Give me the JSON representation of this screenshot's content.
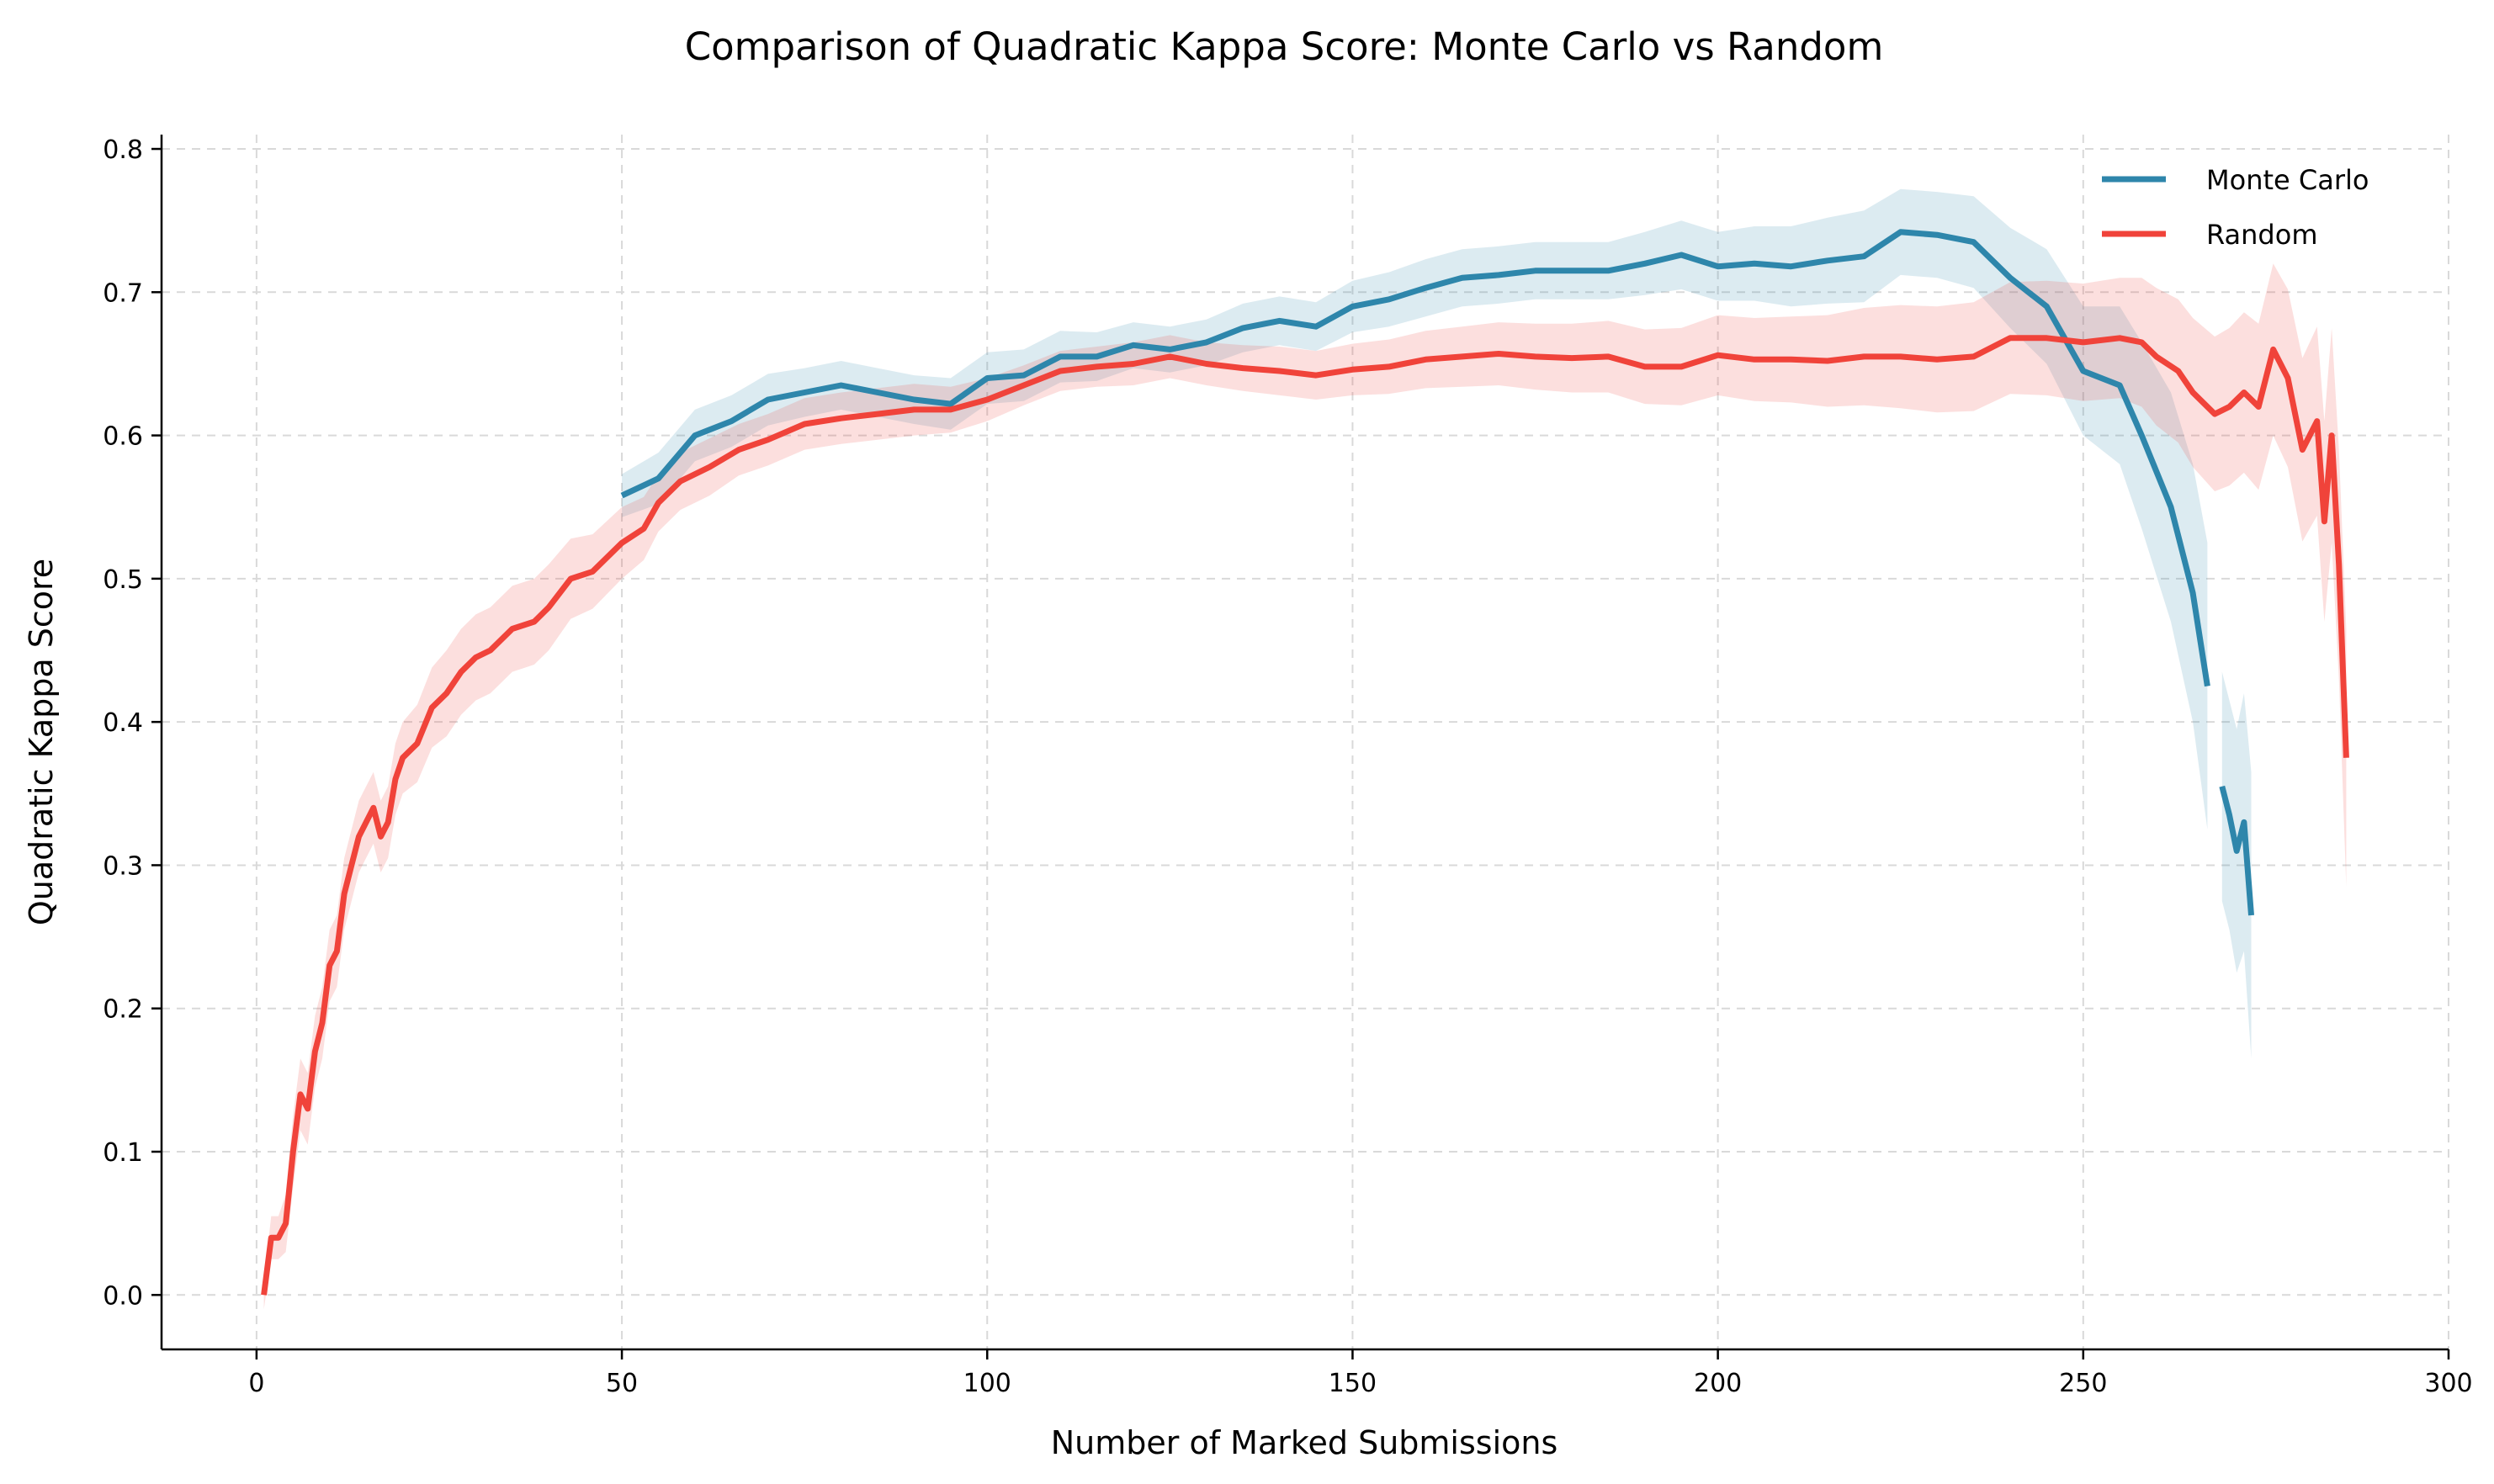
{
  "chart_data": {
    "type": "line",
    "title": "Comparison of Quadratic Kappa Score: Monte Carlo vs Random",
    "xlabel": "Number of Marked Submissions",
    "ylabel": "Quadratic Kappa Score",
    "xlim": [
      -13,
      300
    ],
    "ylim": [
      -0.038,
      0.81
    ],
    "xticks": [
      0,
      50,
      100,
      150,
      200,
      250,
      300
    ],
    "yticks": [
      0.0,
      0.1,
      0.2,
      0.3,
      0.4,
      0.5,
      0.6,
      0.7,
      0.8
    ],
    "xtick_labels": [
      "0",
      "50",
      "100",
      "150",
      "200",
      "250",
      "300"
    ],
    "ytick_labels": [
      "0.0",
      "0.1",
      "0.2",
      "0.3",
      "0.4",
      "0.5",
      "0.6",
      "0.7",
      "0.8"
    ],
    "grid": true,
    "legend": "top-right",
    "series": [
      {
        "name": "Monte Carlo",
        "color": "#2e86ab",
        "band_color": "#2e86ab",
        "segments": [
          {
            "x": [
              50,
              55,
              60,
              65,
              70,
              75,
              80,
              85,
              90,
              95,
              100,
              105,
              110,
              115,
              120,
              125,
              130,
              135,
              140,
              145,
              150,
              155,
              160,
              165,
              170,
              175,
              180,
              185,
              190,
              195,
              200,
              205,
              210,
              215,
              220,
              225,
              230,
              235,
              240,
              245,
              250,
              255,
              258,
              262,
              265,
              267
            ],
            "y": [
              0.558,
              0.57,
              0.6,
              0.61,
              0.625,
              0.63,
              0.635,
              0.63,
              0.625,
              0.622,
              0.64,
              0.642,
              0.655,
              0.655,
              0.663,
              0.66,
              0.665,
              0.675,
              0.68,
              0.676,
              0.69,
              0.695,
              0.703,
              0.71,
              0.712,
              0.715,
              0.715,
              0.715,
              0.72,
              0.726,
              0.718,
              0.72,
              0.718,
              0.722,
              0.725,
              0.742,
              0.74,
              0.735,
              0.71,
              0.69,
              0.645,
              0.635,
              0.6,
              0.55,
              0.49,
              0.425
            ],
            "band": [
              0.015,
              0.018,
              0.018,
              0.018,
              0.018,
              0.017,
              0.017,
              0.017,
              0.017,
              0.018,
              0.018,
              0.018,
              0.018,
              0.017,
              0.016,
              0.016,
              0.016,
              0.017,
              0.017,
              0.017,
              0.018,
              0.019,
              0.02,
              0.02,
              0.02,
              0.02,
              0.02,
              0.02,
              0.022,
              0.024,
              0.024,
              0.026,
              0.028,
              0.03,
              0.032,
              0.03,
              0.03,
              0.032,
              0.035,
              0.04,
              0.045,
              0.055,
              0.065,
              0.08,
              0.09,
              0.1
            ]
          },
          {
            "x": [
              269,
              270,
              271,
              272,
              273
            ],
            "y": [
              0.355,
              0.335,
              0.31,
              0.33,
              0.265
            ],
            "band": [
              0.08,
              0.08,
              0.085,
              0.09,
              0.1
            ]
          }
        ]
      },
      {
        "name": "Random",
        "color": "#f0433a",
        "band_color": "#f0433a",
        "segments": [
          {
            "x": [
              1,
              2,
              3,
              4,
              5,
              6,
              7,
              8,
              9,
              10,
              11,
              12,
              13,
              14,
              15,
              16,
              17,
              18,
              19,
              20,
              22,
              24,
              26,
              28,
              30,
              32,
              35,
              38,
              40,
              43,
              46,
              50,
              53,
              55,
              58,
              62,
              66,
              70,
              75,
              80,
              85,
              90,
              95,
              100,
              105,
              110,
              115,
              120,
              125,
              130,
              135,
              140,
              145,
              150,
              155,
              160,
              165,
              170,
              175,
              180,
              185,
              190,
              195,
              200,
              205,
              210,
              215,
              220,
              225,
              230,
              235,
              240,
              245,
              250,
              255,
              258,
              260,
              263,
              265,
              268,
              270,
              272,
              274,
              276,
              278,
              280,
              282,
              283,
              284,
              285,
              286
            ],
            "y": [
              0.0,
              0.04,
              0.04,
              0.05,
              0.1,
              0.14,
              0.13,
              0.17,
              0.19,
              0.23,
              0.24,
              0.28,
              0.3,
              0.32,
              0.33,
              0.34,
              0.32,
              0.33,
              0.36,
              0.375,
              0.385,
              0.41,
              0.42,
              0.435,
              0.445,
              0.45,
              0.465,
              0.47,
              0.48,
              0.5,
              0.505,
              0.525,
              0.535,
              0.553,
              0.568,
              0.578,
              0.59,
              0.597,
              0.608,
              0.612,
              0.615,
              0.618,
              0.618,
              0.625,
              0.635,
              0.645,
              0.648,
              0.65,
              0.655,
              0.65,
              0.647,
              0.645,
              0.642,
              0.646,
              0.648,
              0.653,
              0.655,
              0.657,
              0.655,
              0.654,
              0.655,
              0.648,
              0.648,
              0.656,
              0.653,
              0.653,
              0.652,
              0.655,
              0.655,
              0.653,
              0.655,
              0.668,
              0.668,
              0.665,
              0.668,
              0.665,
              0.655,
              0.645,
              0.63,
              0.615,
              0.62,
              0.63,
              0.62,
              0.66,
              0.64,
              0.59,
              0.61,
              0.54,
              0.6,
              0.51,
              0.375
            ],
            "band": [
              0.01,
              0.015,
              0.015,
              0.02,
              0.025,
              0.025,
              0.025,
              0.025,
              0.025,
              0.025,
              0.025,
              0.025,
              0.025,
              0.025,
              0.025,
              0.025,
              0.025,
              0.025,
              0.025,
              0.025,
              0.027,
              0.028,
              0.03,
              0.03,
              0.03,
              0.03,
              0.03,
              0.03,
              0.03,
              0.028,
              0.026,
              0.025,
              0.022,
              0.02,
              0.02,
              0.02,
              0.018,
              0.018,
              0.018,
              0.018,
              0.018,
              0.018,
              0.016,
              0.015,
              0.014,
              0.014,
              0.014,
              0.015,
              0.015,
              0.015,
              0.016,
              0.017,
              0.017,
              0.018,
              0.019,
              0.02,
              0.021,
              0.022,
              0.023,
              0.024,
              0.025,
              0.026,
              0.027,
              0.028,
              0.029,
              0.03,
              0.032,
              0.034,
              0.036,
              0.037,
              0.038,
              0.039,
              0.04,
              0.041,
              0.042,
              0.045,
              0.048,
              0.05,
              0.052,
              0.054,
              0.055,
              0.056,
              0.058,
              0.06,
              0.062,
              0.064,
              0.066,
              0.07,
              0.075,
              0.08,
              0.09
            ]
          }
        ]
      }
    ]
  }
}
